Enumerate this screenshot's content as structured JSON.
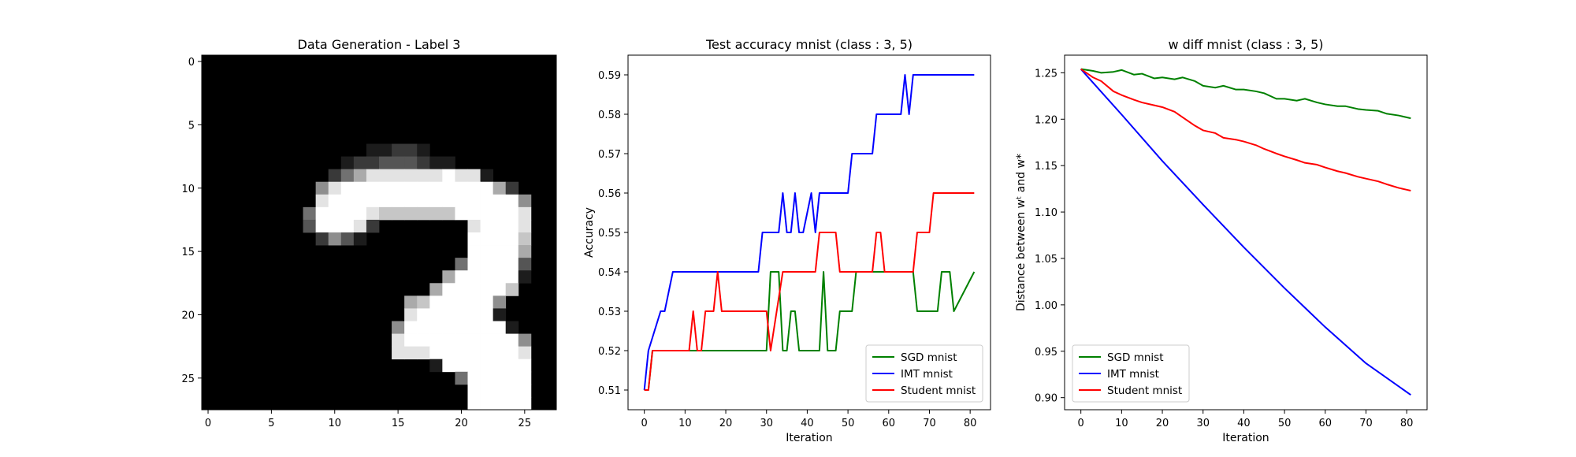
{
  "panels": {
    "image": {
      "title": "Data Generation - Label 3",
      "xticks": [
        0,
        5,
        10,
        15,
        20,
        25
      ],
      "yticks": [
        0,
        5,
        10,
        15,
        20,
        25
      ],
      "pixels": [
        "0000000000000000000000000000",
        "0000000000000000000000000000",
        "0000000000000000000000000000",
        "0000000000000000000000000000",
        "0000000000000000000000000000",
        "0000000000000000000000000000",
        "0000000000000000000000000000",
        "0000000000000112210000000000",
        "0000000000012233321100000000",
        "0000000000246888888988100000",
        "0000000005899999999999962000",
        "0000000008999999999999999500",
        "0000000049999877777799999800",
        "0000000039998200000008999800",
        "0000000002531000000009999700",
        "0000000000000000000009999600",
        "0000000000000000000049999300",
        "0000000000000000000699999100",
        "0000000000000000006999997000",
        "0000000000000000679999950000",
        "0000000000000000899999910000",
        "0000000000000005999999991000",
        "0000000000000008999999999500",
        "0000000000000008889999999800",
        "0000000000000000001999999900",
        "0000000000000000000049999900",
        "0000000000000000000009999900",
        "0000000000000000000009999900"
      ]
    },
    "accuracy": {
      "title": "Test accuracy mnist (class : 3, 5)",
      "xlabel": "Iteration",
      "ylabel": "Accuracy",
      "xticks": [
        0,
        10,
        20,
        30,
        40,
        50,
        60,
        70,
        80
      ],
      "yticks": [
        "0.51",
        "0.52",
        "0.53",
        "0.54",
        "0.55",
        "0.56",
        "0.57",
        "0.58",
        "0.59"
      ]
    },
    "wdiff": {
      "title": "w diff mnist (class : 3, 5)",
      "xlabel": "Iteration",
      "ylabel": "Distance between wᵗ and w*",
      "xticks": [
        0,
        10,
        20,
        30,
        40,
        50,
        60,
        70,
        80
      ],
      "yticks": [
        "0.90",
        "0.95",
        "1.00",
        "1.05",
        "1.10",
        "1.15",
        "1.20",
        "1.25"
      ]
    }
  },
  "colors": {
    "sgd": "#008000",
    "imt": "#0000ff",
    "student": "#ff0000",
    "image_bg": "#000000"
  },
  "chart_data": [
    {
      "type": "heatmap",
      "title": "Data Generation - Label 3",
      "xlim": [
        -0.5,
        27.5
      ],
      "ylim": [
        27.5,
        -0.5
      ],
      "colormap": "gray"
    },
    {
      "type": "line",
      "title": "Test accuracy mnist (class : 3, 5)",
      "xlabel": "Iteration",
      "ylabel": "Accuracy",
      "xlim": [
        -4,
        85
      ],
      "ylim": [
        0.505,
        0.595
      ],
      "legend": "bottom-right",
      "series": [
        {
          "name": "SGD mnist",
          "color": "#008000",
          "x": [
            0,
            1,
            2,
            30,
            31,
            33,
            34,
            35,
            36,
            37,
            38,
            43,
            44,
            45,
            47,
            48,
            51,
            52,
            66,
            67,
            72,
            73,
            75,
            76,
            81
          ],
          "y": [
            0.51,
            0.51,
            0.52,
            0.52,
            0.54,
            0.54,
            0.52,
            0.52,
            0.53,
            0.53,
            0.52,
            0.52,
            0.54,
            0.52,
            0.52,
            0.53,
            0.53,
            0.54,
            0.54,
            0.53,
            0.53,
            0.54,
            0.54,
            0.53,
            0.54
          ]
        },
        {
          "name": "IMT mnist",
          "color": "#0000ff",
          "x": [
            0,
            1,
            4,
            5,
            7,
            28,
            29,
            33,
            34,
            35,
            36,
            37,
            38,
            39,
            41,
            42,
            43,
            44,
            50,
            51,
            56,
            57,
            63,
            64,
            65,
            66,
            81
          ],
          "y": [
            0.51,
            0.52,
            0.53,
            0.53,
            0.54,
            0.54,
            0.55,
            0.55,
            0.56,
            0.55,
            0.55,
            0.56,
            0.55,
            0.55,
            0.56,
            0.55,
            0.56,
            0.56,
            0.56,
            0.57,
            0.57,
            0.58,
            0.58,
            0.59,
            0.58,
            0.59,
            0.59
          ]
        },
        {
          "name": "Student mnist",
          "color": "#ff0000",
          "x": [
            0,
            1,
            2,
            11,
            12,
            13,
            14,
            15,
            17,
            18,
            19,
            20,
            30,
            31,
            34,
            35,
            42,
            43,
            47,
            48,
            56,
            57,
            58,
            59,
            66,
            67,
            70,
            71,
            81
          ],
          "y": [
            0.51,
            0.51,
            0.52,
            0.52,
            0.53,
            0.52,
            0.52,
            0.53,
            0.53,
            0.54,
            0.53,
            0.53,
            0.53,
            0.52,
            0.54,
            0.54,
            0.54,
            0.55,
            0.55,
            0.54,
            0.54,
            0.55,
            0.55,
            0.54,
            0.54,
            0.55,
            0.55,
            0.56,
            0.56
          ]
        }
      ]
    },
    {
      "type": "line",
      "title": "w diff mnist (class : 3, 5)",
      "xlabel": "Iteration",
      "ylabel": "Distance between wᵗ and w*",
      "xlim": [
        -4,
        85
      ],
      "ylim": [
        0.887,
        1.269
      ],
      "legend": "bottom-left",
      "series": [
        {
          "name": "SGD mnist",
          "color": "#008000",
          "x": [
            0,
            3,
            5,
            8,
            10,
            13,
            15,
            18,
            20,
            23,
            25,
            28,
            30,
            33,
            35,
            38,
            40,
            43,
            45,
            48,
            50,
            53,
            55,
            58,
            60,
            63,
            65,
            68,
            70,
            73,
            75,
            78,
            81
          ],
          "y": [
            1.254,
            1.252,
            1.25,
            1.251,
            1.253,
            1.248,
            1.249,
            1.244,
            1.245,
            1.243,
            1.245,
            1.241,
            1.236,
            1.234,
            1.236,
            1.232,
            1.232,
            1.23,
            1.228,
            1.222,
            1.222,
            1.22,
            1.222,
            1.218,
            1.216,
            1.214,
            1.214,
            1.211,
            1.21,
            1.209,
            1.206,
            1.204,
            1.201
          ]
        },
        {
          "name": "IMT mnist",
          "color": "#0000ff",
          "x": [
            0,
            10,
            20,
            30,
            40,
            50,
            60,
            70,
            81
          ],
          "y": [
            1.254,
            1.205,
            1.155,
            1.108,
            1.062,
            1.018,
            0.976,
            0.937,
            0.903
          ]
        },
        {
          "name": "Student mnist",
          "color": "#ff0000",
          "x": [
            0,
            3,
            5,
            8,
            10,
            13,
            15,
            18,
            20,
            23,
            25,
            28,
            30,
            33,
            35,
            38,
            40,
            43,
            45,
            48,
            50,
            53,
            55,
            58,
            60,
            63,
            65,
            68,
            70,
            73,
            75,
            78,
            80,
            81
          ],
          "y": [
            1.254,
            1.245,
            1.241,
            1.23,
            1.226,
            1.221,
            1.218,
            1.215,
            1.213,
            1.208,
            1.202,
            1.193,
            1.188,
            1.185,
            1.18,
            1.178,
            1.176,
            1.172,
            1.168,
            1.163,
            1.16,
            1.156,
            1.153,
            1.151,
            1.148,
            1.144,
            1.142,
            1.138,
            1.136,
            1.133,
            1.13,
            1.126,
            1.124,
            1.123
          ]
        }
      ]
    }
  ]
}
